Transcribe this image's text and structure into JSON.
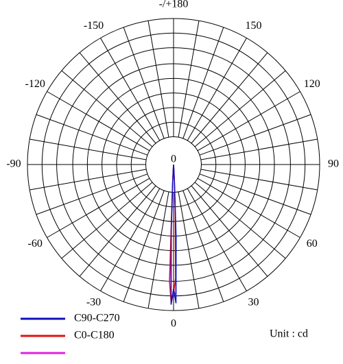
{
  "chart_data": {
    "type": "polar",
    "thetaticks": [
      {
        "value": 180,
        "label": "-/+180"
      },
      150,
      -150,
      120,
      -120,
      90,
      -90,
      60,
      -60,
      30,
      -30,
      0
    ],
    "theta_grid_step": 10,
    "rlim": [
      0,
      100
    ],
    "rticks": [
      0
    ],
    "rgrid": [
      19,
      29,
      39,
      49,
      59,
      69,
      80,
      90,
      100
    ],
    "theta": [
      -10,
      -4,
      -3,
      -2,
      -1,
      0,
      1,
      2,
      3,
      4,
      10
    ],
    "series": [
      {
        "name": null,
        "color": "#e020e0",
        "values": [
          0,
          2,
          12,
          60,
          94,
          86,
          90,
          40,
          10,
          2,
          0
        ]
      },
      {
        "name": "C0-C180",
        "color": "#e01010",
        "values": [
          0,
          2,
          14,
          80,
          95,
          88,
          78,
          30,
          8,
          2,
          0
        ]
      },
      {
        "name": "C90-C270",
        "color": "#1010c0",
        "values": [
          0,
          2,
          10,
          45,
          96,
          85,
          95,
          50,
          12,
          3,
          0
        ]
      }
    ],
    "unit_label": "Unit : cd"
  }
}
